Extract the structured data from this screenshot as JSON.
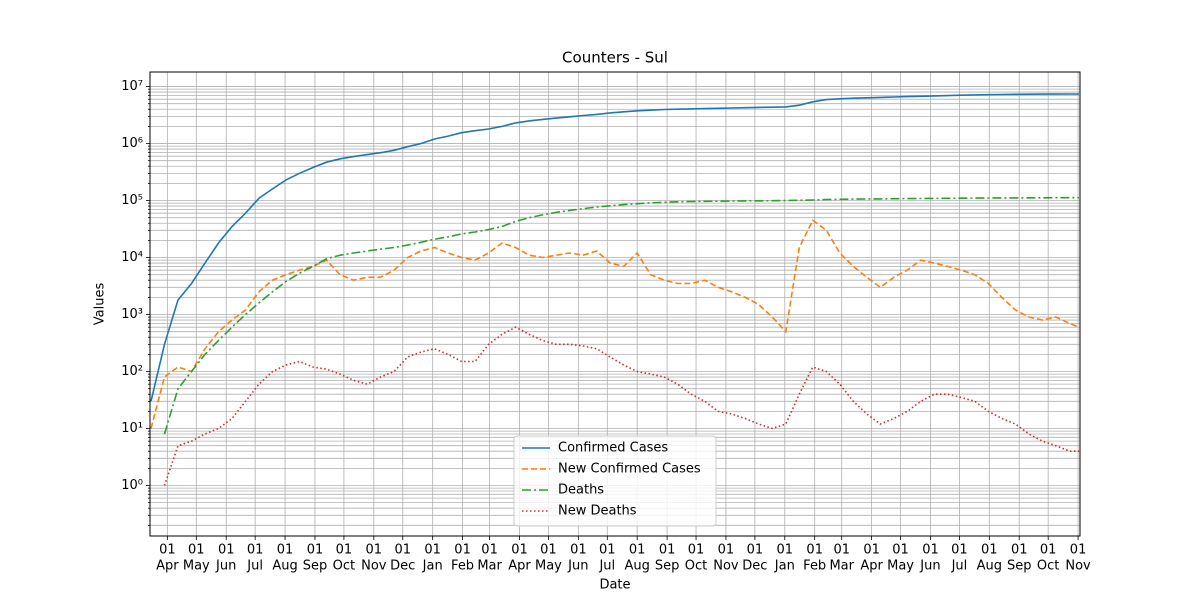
{
  "chart_data": {
    "type": "line",
    "title": "Counters - Sul",
    "xlabel": "Date",
    "ylabel": "Values",
    "yscale": "log",
    "grid": true,
    "legend": "lower center",
    "xlim": [
      -18,
      946
    ],
    "ylim": [
      0.13,
      18000000
    ],
    "xticks": [
      {
        "value": 0,
        "day": "01",
        "label": "Apr"
      },
      {
        "value": 30,
        "day": "01",
        "label": "May"
      },
      {
        "value": 61,
        "day": "01",
        "label": "Jun"
      },
      {
        "value": 91,
        "day": "01",
        "label": "Jul"
      },
      {
        "value": 122,
        "day": "01",
        "label": "Aug"
      },
      {
        "value": 153,
        "day": "01",
        "label": "Sep"
      },
      {
        "value": 183,
        "day": "01",
        "label": "Oct"
      },
      {
        "value": 214,
        "day": "01",
        "label": "Nov"
      },
      {
        "value": 244,
        "day": "01",
        "label": "Dec"
      },
      {
        "value": 275,
        "day": "01",
        "label": "Jan"
      },
      {
        "value": 306,
        "day": "01",
        "label": "Feb"
      },
      {
        "value": 334,
        "day": "01",
        "label": "Mar"
      },
      {
        "value": 365,
        "day": "01",
        "label": "Apr"
      },
      {
        "value": 395,
        "day": "01",
        "label": "May"
      },
      {
        "value": 426,
        "day": "01",
        "label": "Jun"
      },
      {
        "value": 456,
        "day": "01",
        "label": "Jul"
      },
      {
        "value": 487,
        "day": "01",
        "label": "Aug"
      },
      {
        "value": 518,
        "day": "01",
        "label": "Sep"
      },
      {
        "value": 548,
        "day": "01",
        "label": "Oct"
      },
      {
        "value": 579,
        "day": "01",
        "label": "Nov"
      },
      {
        "value": 609,
        "day": "01",
        "label": "Dec"
      },
      {
        "value": 640,
        "day": "01",
        "label": "Jan"
      },
      {
        "value": 671,
        "day": "01",
        "label": "Feb"
      },
      {
        "value": 699,
        "day": "01",
        "label": "Mar"
      },
      {
        "value": 730,
        "day": "01",
        "label": "Apr"
      },
      {
        "value": 760,
        "day": "01",
        "label": "May"
      },
      {
        "value": 791,
        "day": "01",
        "label": "Jun"
      },
      {
        "value": 821,
        "day": "01",
        "label": "Jul"
      },
      {
        "value": 852,
        "day": "01",
        "label": "Aug"
      },
      {
        "value": 883,
        "day": "01",
        "label": "Sep"
      },
      {
        "value": 913,
        "day": "01",
        "label": "Oct"
      },
      {
        "value": 944,
        "day": "01",
        "label": "Nov"
      }
    ],
    "yticks": [
      {
        "value": 1,
        "label": "10⁰"
      },
      {
        "value": 10,
        "label": "10¹"
      },
      {
        "value": 100,
        "label": "10²"
      },
      {
        "value": 1000,
        "label": "10³"
      },
      {
        "value": 10000,
        "label": "10⁴"
      },
      {
        "value": 100000,
        "label": "10⁵"
      },
      {
        "value": 1000000,
        "label": "10⁶"
      },
      {
        "value": 10000000,
        "label": "10⁷"
      }
    ],
    "yminorticks": [
      0.2,
      0.3,
      0.4,
      0.5,
      0.6,
      0.7,
      0.8,
      0.9,
      2,
      3,
      4,
      5,
      6,
      7,
      8,
      9,
      20,
      30,
      40,
      50,
      60,
      70,
      80,
      90,
      200,
      300,
      400,
      500,
      600,
      700,
      800,
      900,
      2000,
      3000,
      4000,
      5000,
      6000,
      7000,
      8000,
      9000,
      20000,
      30000,
      40000,
      50000,
      60000,
      70000,
      80000,
      90000,
      200000,
      300000,
      400000,
      500000,
      600000,
      700000,
      800000,
      900000,
      2000000,
      3000000,
      4000000,
      5000000,
      6000000,
      7000000,
      8000000,
      9000000
    ],
    "x": [
      -17,
      -3,
      11,
      25,
      39,
      53,
      67,
      81,
      95,
      109,
      123,
      137,
      151,
      165,
      179,
      193,
      207,
      221,
      235,
      249,
      263,
      277,
      291,
      305,
      319,
      333,
      347,
      361,
      375,
      389,
      403,
      417,
      431,
      445,
      459,
      473,
      487,
      501,
      515,
      529,
      543,
      557,
      571,
      585,
      599,
      613,
      627,
      641,
      655,
      669,
      683,
      697,
      711,
      725,
      739,
      753,
      767,
      781,
      795,
      809,
      823,
      837,
      851,
      865,
      879,
      893,
      907,
      921,
      935,
      945
    ],
    "series": [
      {
        "name": "Confirmed Cases",
        "color": "#1f77b4",
        "linestyle": "solid",
        "values": [
          30,
          300,
          1800,
          3500,
          8000,
          18000,
          35000,
          60000,
          110000,
          160000,
          230000,
          300000,
          380000,
          470000,
          540000,
          590000,
          640000,
          690000,
          760000,
          880000,
          1000000,
          1200000,
          1350000,
          1550000,
          1680000,
          1800000,
          2000000,
          2300000,
          2500000,
          2650000,
          2800000,
          2950000,
          3100000,
          3250000,
          3450000,
          3600000,
          3750000,
          3850000,
          3950000,
          4000000,
          4050000,
          4100000,
          4150000,
          4200000,
          4250000,
          4300000,
          4350000,
          4400000,
          4700000,
          5400000,
          5900000,
          6100000,
          6250000,
          6350000,
          6450000,
          6550000,
          6650000,
          6750000,
          6850000,
          6950000,
          7050000,
          7150000,
          7200000,
          7250000,
          7300000,
          7330000,
          7360000,
          7380000,
          7400000,
          7410000
        ]
      },
      {
        "name": "New Confirmed Cases",
        "color": "#ff7f0e",
        "linestyle": "dashed",
        "values": [
          10,
          80,
          120,
          100,
          250,
          500,
          800,
          1200,
          2500,
          4000,
          5000,
          6000,
          7000,
          9000,
          5000,
          4000,
          4500,
          4500,
          6000,
          10000,
          13000,
          15000,
          12000,
          10000,
          9000,
          12000,
          18000,
          15000,
          11000,
          10000,
          11000,
          12000,
          11000,
          13000,
          8000,
          7000,
          12000,
          5000,
          4000,
          3500,
          3500,
          4000,
          3000,
          2500,
          2000,
          1500,
          900,
          500,
          15000,
          45000,
          30000,
          12000,
          7000,
          4500,
          3000,
          4500,
          6000,
          9000,
          8000,
          7000,
          6000,
          5000,
          3500,
          2000,
          1200,
          900,
          800,
          900,
          700,
          600
        ]
      },
      {
        "name": "Deaths",
        "color": "#2ca02c",
        "linestyle": "dashdot",
        "values": [
          null,
          8,
          50,
          100,
          200,
          350,
          600,
          1000,
          1600,
          2500,
          3800,
          5300,
          7000,
          9500,
          11000,
          12000,
          13000,
          14000,
          15000,
          16500,
          18500,
          21000,
          23000,
          26000,
          28000,
          31000,
          35000,
          43000,
          50000,
          56000,
          62000,
          67000,
          72000,
          77000,
          81000,
          85000,
          88000,
          91000,
          93000,
          95000,
          96000,
          97000,
          97500,
          98000,
          98500,
          99000,
          99500,
          100000,
          101000,
          102000,
          104000,
          105000,
          106000,
          106500,
          107000,
          107500,
          108000,
          108500,
          109000,
          109500,
          110000,
          110500,
          111000,
          111200,
          111400,
          111600,
          111800,
          112000,
          112200,
          112300
        ]
      },
      {
        "name": "New Deaths",
        "color": "#d62728",
        "linestyle": "dotted",
        "values": [
          null,
          1,
          5,
          6,
          8,
          10,
          15,
          30,
          60,
          100,
          130,
          150,
          120,
          110,
          90,
          70,
          60,
          80,
          100,
          180,
          220,
          250,
          200,
          150,
          150,
          300,
          450,
          600,
          450,
          350,
          300,
          300,
          280,
          250,
          180,
          130,
          100,
          90,
          80,
          60,
          40,
          30,
          20,
          18,
          15,
          12,
          10,
          12,
          40,
          120,
          100,
          60,
          30,
          18,
          12,
          15,
          20,
          30,
          40,
          40,
          35,
          30,
          20,
          15,
          12,
          8,
          6,
          5,
          4,
          4
        ]
      }
    ]
  }
}
